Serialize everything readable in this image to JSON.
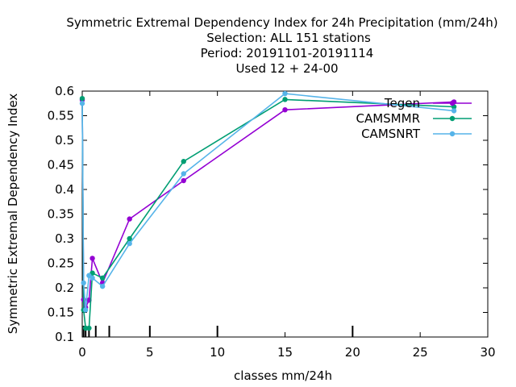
{
  "chart_data": {
    "type": "line",
    "title_lines": [
      "Symmetric Extremal Dependency Index  for 24h Precipitation (mm/24h)",
      "Selection: ALL    151 stations",
      "Period: 20191101-20191114",
      "Used  12 + 24-00"
    ],
    "xlabel": "classes mm/24h",
    "ylabel": "Symmetric Extremal Dependency Index",
    "xlim": [
      0,
      30
    ],
    "ylim": [
      0.1,
      0.6
    ],
    "x_ticks": [
      0,
      5,
      10,
      15,
      20,
      25,
      30
    ],
    "x_tick_labels": [
      "0",
      "5",
      "10",
      "15",
      "20",
      "25",
      "30"
    ],
    "y_ticks": [
      0.1,
      0.15,
      0.2,
      0.25,
      0.3,
      0.35,
      0.4,
      0.45,
      0.5,
      0.55,
      0.6
    ],
    "y_tick_labels": [
      "0.1",
      "0.15",
      "0.2",
      "0.25",
      "0.3",
      "0.35",
      "0.4",
      "0.45",
      "0.5",
      "0.55",
      "0.6"
    ],
    "class_markers_x": [
      0.1,
      0.25,
      0.5,
      1,
      2,
      5,
      10,
      20
    ],
    "grid": false,
    "legend_position": "top-right",
    "series": [
      {
        "name": "Tegen",
        "color": "#9400d3",
        "x": [
          0.0,
          0.1,
          0.25,
          0.5,
          0.75,
          1.5,
          3.5,
          7.5,
          15,
          27.5
        ],
        "y": [
          0.582,
          0.176,
          0.16,
          0.175,
          0.26,
          0.21,
          0.34,
          0.418,
          0.562,
          0.578
        ]
      },
      {
        "name": "CAMSMMR",
        "color": "#009e73",
        "x": [
          0.0,
          0.1,
          0.25,
          0.5,
          0.75,
          1.5,
          3.5,
          7.5,
          15,
          27.5
        ],
        "y": [
          0.585,
          0.155,
          0.118,
          0.118,
          0.23,
          0.22,
          0.3,
          0.457,
          0.583,
          0.568
        ]
      },
      {
        "name": "CAMSNRT",
        "color": "#56b4e9",
        "x": [
          0.0,
          0.1,
          0.25,
          0.5,
          0.75,
          1.5,
          3.5,
          7.5,
          15,
          27.5
        ],
        "y": [
          0.575,
          0.21,
          0.155,
          0.225,
          0.22,
          0.203,
          0.29,
          0.432,
          0.595,
          0.56
        ]
      }
    ]
  }
}
